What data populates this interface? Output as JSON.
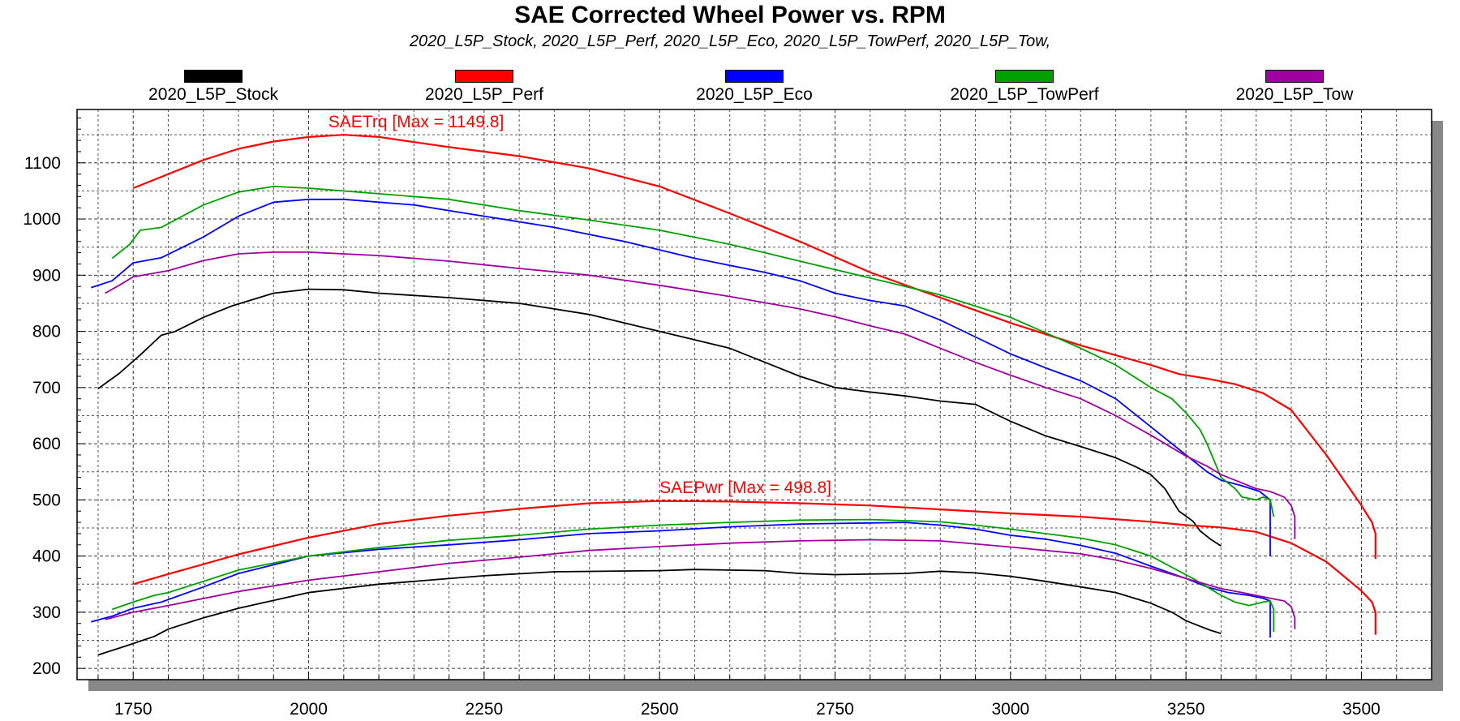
{
  "chart_data": {
    "type": "line",
    "title": "SAE Corrected Wheel Power vs. RPM",
    "subtitle": "2020_L5P_Stock, 2020_L5P_Perf, 2020_L5P_Eco, 2020_L5P_TowPerf, 2020_L5P_Tow,",
    "xlabel": "",
    "ylabel": "",
    "xlim": [
      1670,
      3600
    ],
    "ylim": [
      180,
      1195
    ],
    "x_ticks": [
      1750,
      2000,
      2250,
      2500,
      2750,
      3000,
      3250,
      3500
    ],
    "y_ticks": [
      200,
      300,
      400,
      500,
      600,
      700,
      800,
      900,
      1000,
      1100
    ],
    "grid": true,
    "legend_position": "top",
    "annotations": [
      {
        "text": "SAETrq [Max = 1149.8]",
        "x": 2028,
        "y": 1163,
        "color": "#ff0000"
      },
      {
        "text": "SAEPwr [Max = 498.8]",
        "x": 2500,
        "y": 512,
        "color": "#ff0000"
      }
    ],
    "series": [
      {
        "name": "2020_L5P_Stock",
        "color": "#000000",
        "torque": [
          [
            1700,
            698
          ],
          [
            1730,
            725
          ],
          [
            1760,
            758
          ],
          [
            1790,
            793
          ],
          [
            1810,
            800
          ],
          [
            1850,
            825
          ],
          [
            1890,
            845
          ],
          [
            1950,
            868
          ],
          [
            2000,
            875
          ],
          [
            2050,
            874
          ],
          [
            2100,
            868
          ],
          [
            2200,
            860
          ],
          [
            2300,
            850
          ],
          [
            2400,
            830
          ],
          [
            2500,
            800
          ],
          [
            2550,
            785
          ],
          [
            2600,
            770
          ],
          [
            2650,
            745
          ],
          [
            2700,
            720
          ],
          [
            2750,
            700
          ],
          [
            2800,
            692
          ],
          [
            2850,
            685
          ],
          [
            2900,
            676
          ],
          [
            2950,
            670
          ],
          [
            3000,
            640
          ],
          [
            3050,
            614
          ],
          [
            3100,
            595
          ],
          [
            3150,
            575
          ],
          [
            3180,
            558
          ],
          [
            3200,
            545
          ],
          [
            3220,
            520
          ],
          [
            3240,
            480
          ],
          [
            3260,
            462
          ],
          [
            3270,
            445
          ],
          [
            3285,
            430
          ],
          [
            3300,
            418
          ]
        ],
        "power": [
          [
            1700,
            224
          ],
          [
            1740,
            240
          ],
          [
            1780,
            257
          ],
          [
            1800,
            270
          ],
          [
            1850,
            290
          ],
          [
            1900,
            307
          ],
          [
            2000,
            335
          ],
          [
            2100,
            350
          ],
          [
            2250,
            365
          ],
          [
            2350,
            372
          ],
          [
            2500,
            374
          ],
          [
            2550,
            376
          ],
          [
            2650,
            374
          ],
          [
            2700,
            369
          ],
          [
            2750,
            367
          ],
          [
            2850,
            369
          ],
          [
            2900,
            373
          ],
          [
            2950,
            370
          ],
          [
            3000,
            364
          ],
          [
            3050,
            355
          ],
          [
            3100,
            345
          ],
          [
            3150,
            335
          ],
          [
            3200,
            316
          ],
          [
            3230,
            300
          ],
          [
            3250,
            285
          ],
          [
            3270,
            275
          ],
          [
            3285,
            268
          ],
          [
            3300,
            262
          ]
        ]
      },
      {
        "name": "2020_L5P_Perf",
        "color": "#ff0000",
        "torque": [
          [
            1750,
            1055
          ],
          [
            1790,
            1075
          ],
          [
            1850,
            1105
          ],
          [
            1900,
            1125
          ],
          [
            1950,
            1138
          ],
          [
            2000,
            1146
          ],
          [
            2050,
            1150
          ],
          [
            2100,
            1146
          ],
          [
            2200,
            1128
          ],
          [
            2300,
            1112
          ],
          [
            2400,
            1090
          ],
          [
            2500,
            1058
          ],
          [
            2600,
            1010
          ],
          [
            2700,
            960
          ],
          [
            2800,
            905
          ],
          [
            2900,
            860
          ],
          [
            3000,
            815
          ],
          [
            3100,
            775
          ],
          [
            3200,
            740
          ],
          [
            3240,
            724
          ],
          [
            3280,
            716
          ],
          [
            3320,
            706
          ],
          [
            3360,
            690
          ],
          [
            3400,
            660
          ],
          [
            3450,
            580
          ],
          [
            3500,
            490
          ],
          [
            3515,
            460
          ],
          [
            3520,
            440
          ],
          [
            3520,
            395
          ]
        ],
        "power": [
          [
            1750,
            350
          ],
          [
            1800,
            368
          ],
          [
            1900,
            403
          ],
          [
            2000,
            433
          ],
          [
            2100,
            457
          ],
          [
            2200,
            472
          ],
          [
            2300,
            484
          ],
          [
            2400,
            494
          ],
          [
            2500,
            498
          ],
          [
            2600,
            497
          ],
          [
            2700,
            494
          ],
          [
            2800,
            490
          ],
          [
            2900,
            483
          ],
          [
            3000,
            476
          ],
          [
            3100,
            470
          ],
          [
            3200,
            461
          ],
          [
            3250,
            455
          ],
          [
            3300,
            451
          ],
          [
            3350,
            443
          ],
          [
            3400,
            423
          ],
          [
            3450,
            390
          ],
          [
            3500,
            338
          ],
          [
            3515,
            318
          ],
          [
            3520,
            300
          ],
          [
            3520,
            260
          ]
        ]
      },
      {
        "name": "2020_L5P_Eco",
        "color": "#0000ff",
        "torque": [
          [
            1690,
            878
          ],
          [
            1720,
            890
          ],
          [
            1750,
            922
          ],
          [
            1790,
            931
          ],
          [
            1850,
            968
          ],
          [
            1900,
            1005
          ],
          [
            1950,
            1030
          ],
          [
            2000,
            1035
          ],
          [
            2050,
            1035
          ],
          [
            2150,
            1025
          ],
          [
            2250,
            1005
          ],
          [
            2350,
            985
          ],
          [
            2450,
            960
          ],
          [
            2550,
            930
          ],
          [
            2650,
            905
          ],
          [
            2700,
            890
          ],
          [
            2750,
            868
          ],
          [
            2800,
            855
          ],
          [
            2850,
            845
          ],
          [
            2900,
            820
          ],
          [
            2950,
            790
          ],
          [
            3000,
            760
          ],
          [
            3050,
            735
          ],
          [
            3100,
            712
          ],
          [
            3150,
            680
          ],
          [
            3200,
            630
          ],
          [
            3250,
            580
          ],
          [
            3280,
            550
          ],
          [
            3300,
            535
          ],
          [
            3330,
            525
          ],
          [
            3355,
            515
          ],
          [
            3370,
            500
          ],
          [
            3370,
            400
          ]
        ],
        "power": [
          [
            1690,
            283
          ],
          [
            1720,
            293
          ],
          [
            1750,
            307
          ],
          [
            1790,
            318
          ],
          [
            1850,
            345
          ],
          [
            1900,
            369
          ],
          [
            2000,
            400
          ],
          [
            2100,
            412
          ],
          [
            2200,
            420
          ],
          [
            2300,
            429
          ],
          [
            2400,
            440
          ],
          [
            2500,
            445
          ],
          [
            2600,
            452
          ],
          [
            2700,
            457
          ],
          [
            2800,
            459
          ],
          [
            2850,
            460
          ],
          [
            2900,
            455
          ],
          [
            2950,
            448
          ],
          [
            3000,
            437
          ],
          [
            3050,
            430
          ],
          [
            3100,
            419
          ],
          [
            3150,
            405
          ],
          [
            3200,
            382
          ],
          [
            3250,
            360
          ],
          [
            3280,
            345
          ],
          [
            3310,
            335
          ],
          [
            3340,
            330
          ],
          [
            3360,
            325
          ],
          [
            3370,
            320
          ],
          [
            3370,
            255
          ]
        ]
      },
      {
        "name": "2020_L5P_TowPerf",
        "color": "#00a000",
        "torque": [
          [
            1720,
            930
          ],
          [
            1745,
            955
          ],
          [
            1760,
            980
          ],
          [
            1790,
            985
          ],
          [
            1850,
            1025
          ],
          [
            1900,
            1048
          ],
          [
            1950,
            1058
          ],
          [
            2000,
            1055
          ],
          [
            2100,
            1045
          ],
          [
            2200,
            1035
          ],
          [
            2300,
            1015
          ],
          [
            2400,
            998
          ],
          [
            2500,
            980
          ],
          [
            2600,
            955
          ],
          [
            2700,
            925
          ],
          [
            2800,
            895
          ],
          [
            2900,
            865
          ],
          [
            3000,
            825
          ],
          [
            3100,
            770
          ],
          [
            3150,
            740
          ],
          [
            3200,
            700
          ],
          [
            3230,
            680
          ],
          [
            3250,
            655
          ],
          [
            3270,
            625
          ],
          [
            3280,
            600
          ],
          [
            3290,
            570
          ],
          [
            3300,
            540
          ],
          [
            3320,
            520
          ],
          [
            3330,
            505
          ],
          [
            3350,
            500
          ],
          [
            3360,
            505
          ],
          [
            3370,
            500
          ],
          [
            3375,
            470
          ]
        ],
        "power": [
          [
            1720,
            305
          ],
          [
            1750,
            318
          ],
          [
            1780,
            330
          ],
          [
            1800,
            335
          ],
          [
            1850,
            355
          ],
          [
            1900,
            375
          ],
          [
            2000,
            400
          ],
          [
            2100,
            415
          ],
          [
            2200,
            428
          ],
          [
            2300,
            437
          ],
          [
            2400,
            448
          ],
          [
            2500,
            455
          ],
          [
            2600,
            460
          ],
          [
            2700,
            464
          ],
          [
            2800,
            465
          ],
          [
            2900,
            461
          ],
          [
            2950,
            455
          ],
          [
            3000,
            448
          ],
          [
            3100,
            432
          ],
          [
            3150,
            420
          ],
          [
            3200,
            400
          ],
          [
            3230,
            380
          ],
          [
            3260,
            360
          ],
          [
            3280,
            345
          ],
          [
            3300,
            330
          ],
          [
            3320,
            318
          ],
          [
            3340,
            312
          ],
          [
            3360,
            318
          ],
          [
            3370,
            320
          ],
          [
            3375,
            305
          ],
          [
            3375,
            265
          ]
        ]
      },
      {
        "name": "2020_L5P_Tow",
        "color": "#a000a0",
        "torque": [
          [
            1710,
            868
          ],
          [
            1730,
            882
          ],
          [
            1750,
            897
          ],
          [
            1800,
            908
          ],
          [
            1850,
            926
          ],
          [
            1900,
            938
          ],
          [
            1950,
            941
          ],
          [
            2000,
            941
          ],
          [
            2100,
            935
          ],
          [
            2200,
            925
          ],
          [
            2300,
            912
          ],
          [
            2400,
            900
          ],
          [
            2500,
            882
          ],
          [
            2600,
            862
          ],
          [
            2700,
            840
          ],
          [
            2750,
            826
          ],
          [
            2800,
            810
          ],
          [
            2850,
            795
          ],
          [
            2900,
            770
          ],
          [
            2950,
            745
          ],
          [
            3000,
            722
          ],
          [
            3050,
            700
          ],
          [
            3100,
            680
          ],
          [
            3150,
            650
          ],
          [
            3200,
            615
          ],
          [
            3250,
            578
          ],
          [
            3280,
            560
          ],
          [
            3300,
            545
          ],
          [
            3330,
            530
          ],
          [
            3350,
            520
          ],
          [
            3370,
            515
          ],
          [
            3390,
            505
          ],
          [
            3400,
            490
          ],
          [
            3405,
            470
          ],
          [
            3405,
            430
          ]
        ],
        "power": [
          [
            1710,
            287
          ],
          [
            1750,
            300
          ],
          [
            1800,
            312
          ],
          [
            1900,
            337
          ],
          [
            2000,
            357
          ],
          [
            2100,
            372
          ],
          [
            2200,
            387
          ],
          [
            2300,
            398
          ],
          [
            2400,
            410
          ],
          [
            2500,
            417
          ],
          [
            2600,
            423
          ],
          [
            2700,
            427
          ],
          [
            2800,
            429
          ],
          [
            2900,
            427
          ],
          [
            3000,
            416
          ],
          [
            3050,
            410
          ],
          [
            3100,
            404
          ],
          [
            3150,
            393
          ],
          [
            3200,
            378
          ],
          [
            3250,
            360
          ],
          [
            3300,
            342
          ],
          [
            3330,
            335
          ],
          [
            3350,
            330
          ],
          [
            3370,
            325
          ],
          [
            3390,
            320
          ],
          [
            3400,
            310
          ],
          [
            3405,
            290
          ],
          [
            3405,
            270
          ]
        ]
      }
    ]
  }
}
